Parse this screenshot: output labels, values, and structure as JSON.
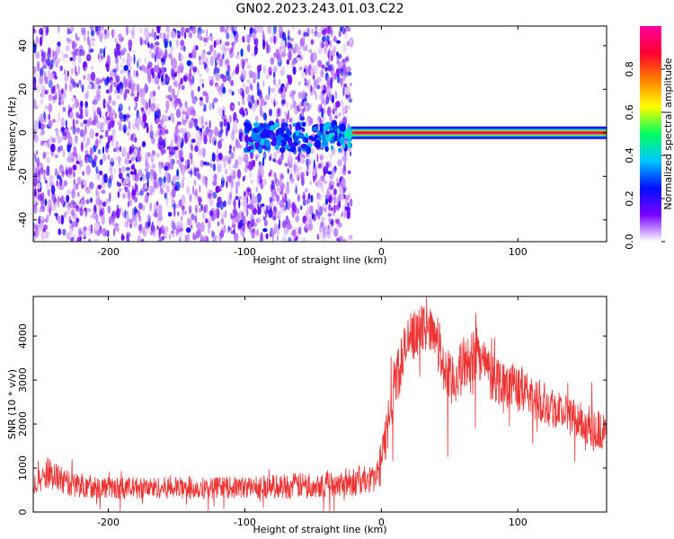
{
  "title": "GN02.2023.243.01.03.C22",
  "chart_data": [
    {
      "type": "heatmap",
      "xlabel": "Height of straight line (km)",
      "ylabel": "Frequency (Hz)",
      "xlim": [
        -255,
        165
      ],
      "ylim": [
        -50,
        49
      ],
      "x_ticks": [
        -200,
        -100,
        0,
        100
      ],
      "y_ticks": [
        -40,
        -20,
        0,
        20,
        40
      ],
      "colorbar": {
        "label": "Normalized spectral amplitude",
        "range": [
          0,
          1
        ],
        "ticks": [
          "0.0",
          "0.2",
          "0.4",
          "0.6",
          "0.8"
        ],
        "colormap": [
          "#ffffff",
          "#7a00ff",
          "#0010ff",
          "#00c8ff",
          "#00ff60",
          "#ffff00",
          "#ff8000",
          "#ff0030",
          "#ff00a0"
        ]
      },
      "regions": [
        {
          "x_range": [
            -255,
            -22
          ],
          "freq_range": [
            -50,
            49
          ],
          "amplitude": "0.0-0.3",
          "pattern": "scattered noise"
        },
        {
          "x_range": [
            -100,
            -22
          ],
          "freq_range": [
            -8,
            4
          ],
          "amplitude": "0.2-0.5",
          "pattern": "emerging carrier band"
        },
        {
          "x_range": [
            -22,
            165
          ],
          "freq_range": [
            -1.5,
            1.5
          ],
          "amplitude": "0.8-1.0",
          "pattern": "strong carrier line"
        }
      ]
    },
    {
      "type": "line",
      "xlabel": "Height of straight line (km)",
      "ylabel": "SNR (10 * v/v)",
      "xlim": [
        -255,
        165
      ],
      "ylim": [
        0,
        4900
      ],
      "x_ticks": [
        -200,
        -100,
        0,
        100
      ],
      "y_ticks": [
        0,
        1000,
        2000,
        3000,
        4000
      ],
      "color": "#ee3333",
      "series": [
        {
          "x": [
            -255,
            -245,
            -230,
            -200,
            -150,
            -100,
            -60,
            -40,
            -20,
            -5,
            0,
            10,
            20,
            30,
            40,
            45,
            50,
            60,
            70,
            80,
            100,
            120,
            140,
            160,
            165
          ],
          "y": [
            600,
            900,
            650,
            550,
            550,
            560,
            600,
            650,
            700,
            750,
            1100,
            3000,
            3900,
            4200,
            4100,
            3400,
            2900,
            3300,
            3700,
            3100,
            2800,
            2500,
            2150,
            1850,
            1750
          ],
          "noise": [
            250,
            350,
            300,
            250,
            250,
            250,
            300,
            300,
            350,
            300,
            500,
            700,
            600,
            500,
            500,
            700,
            700,
            600,
            600,
            600,
            550,
            500,
            450,
            450,
            450
          ]
        }
      ]
    }
  ]
}
